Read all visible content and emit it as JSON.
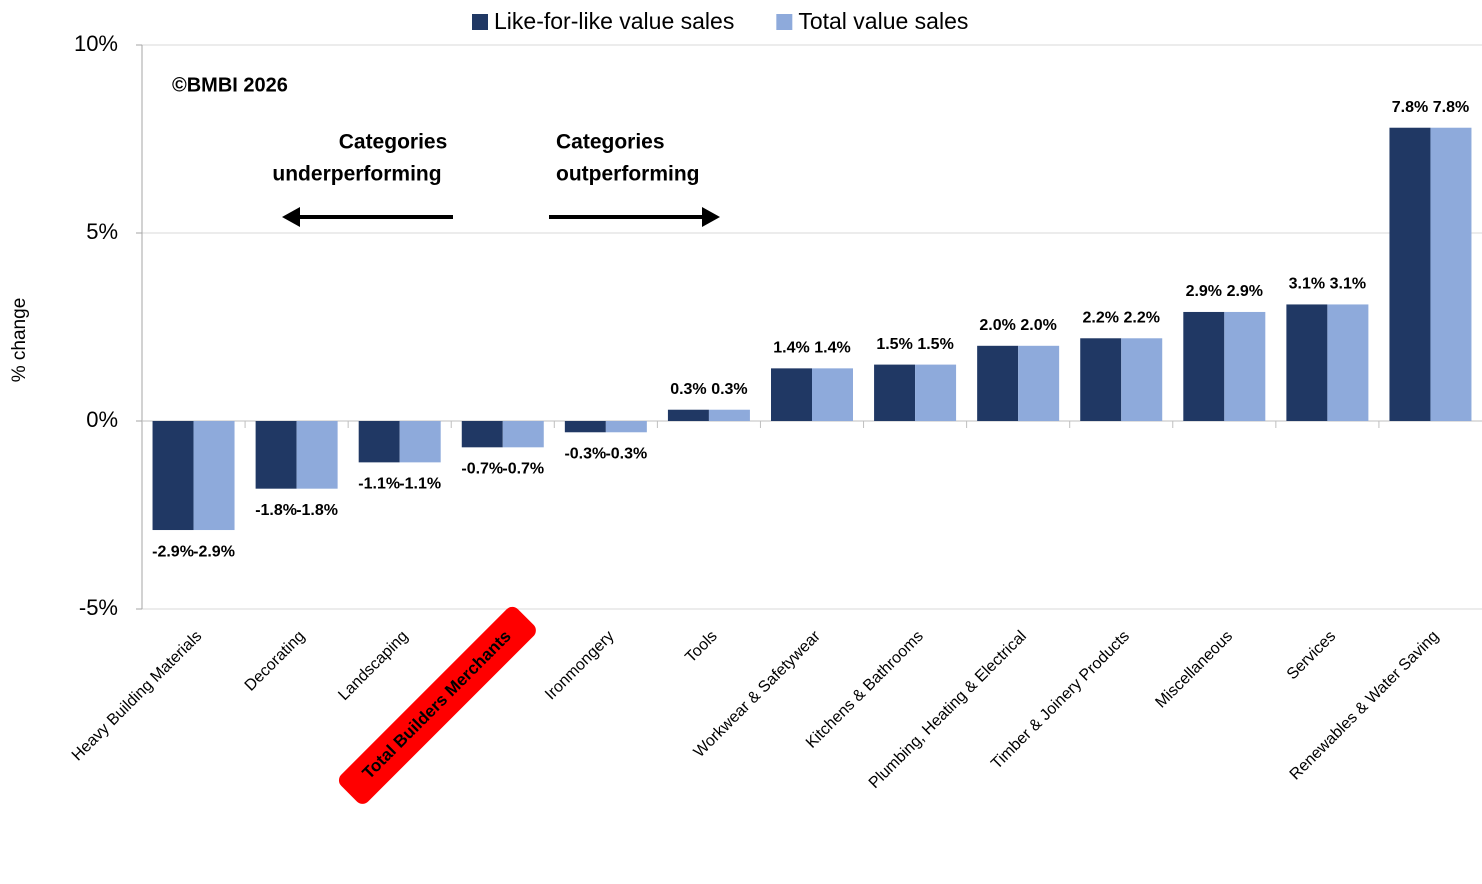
{
  "chart_data": {
    "type": "bar",
    "y_label": "% change",
    "annotations": {
      "copyright": "©BMBI 2026",
      "left_arrow_text": [
        "Categories",
        "underperforming"
      ],
      "right_arrow_text": [
        "Categories",
        "outperforming"
      ]
    },
    "categories": [
      "Heavy Building Materials",
      "Decorating",
      "Landscaping",
      "Total Builders Merchants",
      "Ironmongery",
      "Tools",
      "Workwear & Safetywear",
      "Kitchens & Bathrooms",
      "Plumbing, Heating & Electrical",
      "Timber & Joinery Products",
      "Miscellaneous",
      "Services",
      "Renewables & Water Saving"
    ],
    "series": [
      {
        "name": "Like-for-like value sales",
        "color": "#203864",
        "label_color": "#203864",
        "values": [
          -2.9,
          -1.8,
          -1.1,
          -0.7,
          -0.3,
          0.3,
          1.4,
          1.5,
          2.0,
          2.2,
          2.9,
          3.1,
          7.8
        ],
        "value_labels": [
          "-2.9%",
          "-1.8%",
          "-1.1%",
          "-0.7%",
          "-0.3%",
          "0.3%",
          "1.4%",
          "1.5%",
          "2.0%",
          "2.2%",
          "2.9%",
          "3.1%",
          "7.8%"
        ]
      },
      {
        "name": "Total value sales",
        "color": "#8eaadb",
        "label_color": "#8eaadb",
        "values": [
          -2.9,
          -1.8,
          -1.1,
          -0.7,
          -0.3,
          0.3,
          1.4,
          1.5,
          2.0,
          2.2,
          2.9,
          3.1,
          7.8
        ],
        "value_labels": [
          "-2.9%",
          "-1.8%",
          "-1.1%",
          "-0.7%",
          "-0.3%",
          "0.3%",
          "1.4%",
          "1.5%",
          "2.0%",
          "2.2%",
          "2.9%",
          "3.1%",
          "7.8%"
        ]
      }
    ],
    "highlight_index": 3,
    "highlight_color": "#ff0000",
    "ylim": [
      -5,
      10
    ],
    "yticks": [
      {
        "value": -5,
        "label": "-5%"
      },
      {
        "value": 0,
        "label": "0%"
      },
      {
        "value": 5,
        "label": "5%"
      },
      {
        "value": 10,
        "label": "10%"
      }
    ],
    "grid": true
  }
}
